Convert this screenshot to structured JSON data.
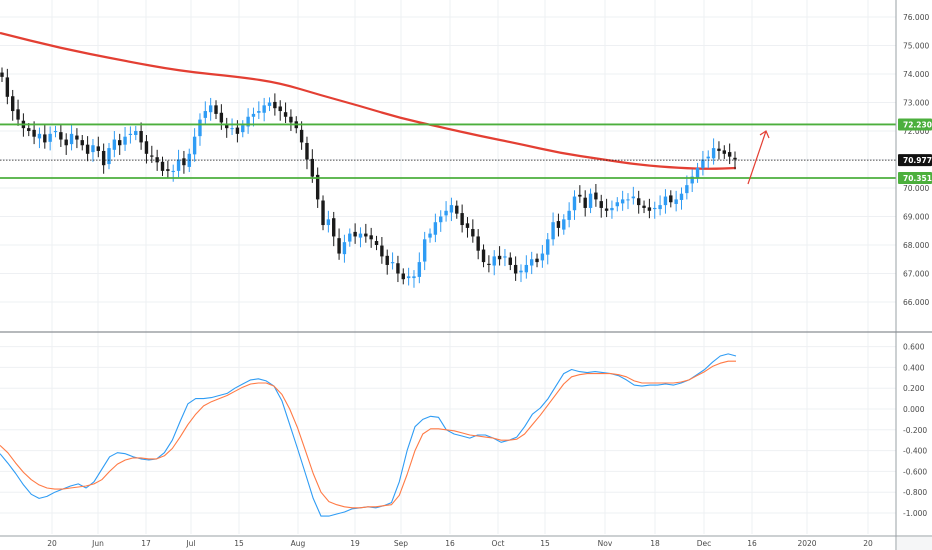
{
  "chart_data": [
    {
      "type": "candlestick",
      "title": "",
      "xlabel": "",
      "ylabel": "",
      "ylim": [
        65.6,
        76.4
      ],
      "y_ticks": [
        "66.000",
        "67.000",
        "68.000",
        "69.000",
        "70.000",
        "71.000",
        "72.000",
        "73.000",
        "74.000",
        "75.000",
        "76.000"
      ],
      "x_ticks": [
        "20",
        "Jun",
        "17",
        "Jul",
        "15",
        "Aug",
        "19",
        "Sep",
        "16",
        "Oct",
        "15",
        "Nov",
        "18",
        "Dec",
        "16",
        "2020",
        "20"
      ],
      "grid": true,
      "colors": {
        "up": "#2f9cf4",
        "down": "#1a1a1a",
        "moving_average": "#e33f33",
        "level": "#4caf3d",
        "arrow": "#e33f33",
        "last_price": "#1a1a1a"
      },
      "closes": [
        73.9,
        73.2,
        72.7,
        72.4,
        72.1,
        72.0,
        71.8,
        71.9,
        71.6,
        71.9,
        72.0,
        71.7,
        71.5,
        71.9,
        71.7,
        71.5,
        71.2,
        71.5,
        71.3,
        70.8,
        71.4,
        71.7,
        71.5,
        71.8,
        71.9,
        72.0,
        71.6,
        71.2,
        71.1,
        70.9,
        70.6,
        70.6,
        70.6,
        71.0,
        70.8,
        71.2,
        71.8,
        72.4,
        72.7,
        72.9,
        72.6,
        72.3,
        72.1,
        72.1,
        71.9,
        72.2,
        72.5,
        72.6,
        72.7,
        72.9,
        73.0,
        72.8,
        72.7,
        72.5,
        72.3,
        72.1,
        71.6,
        71.0,
        70.4,
        69.6,
        68.7,
        68.9,
        68.3,
        67.7,
        68.1,
        68.4,
        68.3,
        68.4,
        68.3,
        68.2,
        68.0,
        67.6,
        67.3,
        67.4,
        67.0,
        66.8,
        66.9,
        66.9,
        67.4,
        68.2,
        68.4,
        68.8,
        69.0,
        69.2,
        69.4,
        69.1,
        68.7,
        68.6,
        68.3,
        67.8,
        67.4,
        67.3,
        67.6,
        67.5,
        67.6,
        67.3,
        67.0,
        67.1,
        67.3,
        67.5,
        67.4,
        67.7,
        68.2,
        68.8,
        68.6,
        68.9,
        69.2,
        69.7,
        69.7,
        69.3,
        69.8,
        69.6,
        69.3,
        69.2,
        69.3,
        69.5,
        69.6,
        69.6,
        69.7,
        69.4,
        69.3,
        69.2,
        69.3,
        69.4,
        69.7,
        69.5,
        69.6,
        69.8,
        70.1,
        70.4,
        70.7,
        71.0,
        71.1,
        71.4,
        71.3,
        71.2,
        71.1,
        71.0
      ],
      "levels": [
        {
          "name": "resistance",
          "value": 72.23,
          "label": "72.230"
        },
        {
          "name": "support",
          "value": 70.351,
          "label": "70.351"
        }
      ],
      "last_price": {
        "value": 70.977,
        "label": "70.977"
      }
    },
    {
      "type": "line",
      "title": "",
      "ylim": [
        -1.1,
        0.68
      ],
      "y_ticks": [
        "-1.000",
        "-0.800",
        "-0.600",
        "-0.400",
        "-0.200",
        "0.000",
        "0.200",
        "0.400",
        "0.600"
      ],
      "colors": {
        "fast": "#2f9cf4",
        "slow": "#ff7a45"
      },
      "series": [
        {
          "values": [
            -0.43,
            -0.52,
            -0.62,
            -0.73,
            -0.82,
            -0.86,
            -0.84,
            -0.8,
            -0.77,
            -0.74,
            -0.72,
            -0.76,
            -0.7,
            -0.58,
            -0.46,
            -0.42,
            -0.43,
            -0.46,
            -0.48,
            -0.49,
            -0.48,
            -0.42,
            -0.3,
            -0.12,
            0.05,
            0.1,
            0.1,
            0.11,
            0.13,
            0.15,
            0.2,
            0.24,
            0.28,
            0.29,
            0.27,
            0.22,
            0.08,
            -0.15,
            -0.38,
            -0.62,
            -0.86,
            -1.03,
            -1.03,
            -1.01,
            -0.99,
            -0.96,
            -0.95,
            -0.94,
            -0.95,
            -0.93,
            -0.9,
            -0.7,
            -0.4,
            -0.17,
            -0.1,
            -0.07,
            -0.08,
            -0.2,
            -0.24,
            -0.26,
            -0.28,
            -0.25,
            -0.25,
            -0.28,
            -0.32,
            -0.3,
            -0.27,
            -0.17,
            -0.05,
            0.01,
            0.1,
            0.22,
            0.34,
            0.38,
            0.36,
            0.35,
            0.36,
            0.35,
            0.34,
            0.32,
            0.28,
            0.23,
            0.22,
            0.23,
            0.23,
            0.24,
            0.23,
            0.25,
            0.28,
            0.33,
            0.38,
            0.45,
            0.51,
            0.53,
            0.51
          ]
        },
        {
          "values": [
            -0.35,
            -0.42,
            -0.52,
            -0.61,
            -0.68,
            -0.73,
            -0.76,
            -0.77,
            -0.77,
            -0.76,
            -0.75,
            -0.74,
            -0.72,
            -0.68,
            -0.6,
            -0.53,
            -0.49,
            -0.47,
            -0.47,
            -0.48,
            -0.48,
            -0.45,
            -0.38,
            -0.27,
            -0.15,
            -0.05,
            0.03,
            0.07,
            0.1,
            0.13,
            0.17,
            0.21,
            0.24,
            0.25,
            0.25,
            0.22,
            0.14,
            0.0,
            -0.18,
            -0.4,
            -0.62,
            -0.8,
            -0.89,
            -0.92,
            -0.94,
            -0.95,
            -0.95,
            -0.94,
            -0.94,
            -0.93,
            -0.92,
            -0.83,
            -0.63,
            -0.4,
            -0.24,
            -0.19,
            -0.19,
            -0.2,
            -0.21,
            -0.23,
            -0.25,
            -0.26,
            -0.27,
            -0.28,
            -0.3,
            -0.3,
            -0.29,
            -0.24,
            -0.15,
            -0.06,
            0.04,
            0.14,
            0.24,
            0.31,
            0.33,
            0.34,
            0.34,
            0.34,
            0.34,
            0.33,
            0.31,
            0.27,
            0.25,
            0.25,
            0.25,
            0.25,
            0.25,
            0.26,
            0.28,
            0.32,
            0.36,
            0.41,
            0.44,
            0.46,
            0.46
          ]
        }
      ]
    }
  ]
}
